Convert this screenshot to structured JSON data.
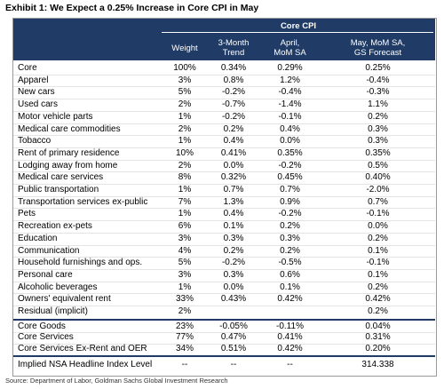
{
  "title": "Exhibit 1: We Expect a 0.25% Increase in Core CPI in May",
  "table": {
    "group_header": "Core CPI",
    "columns": [
      [
        "Weight"
      ],
      [
        "3-Month",
        "Trend"
      ],
      [
        "April,",
        "MoM SA"
      ],
      [
        "May, MoM SA,",
        "GS Forecast"
      ]
    ],
    "sections": [
      {
        "rows": [
          [
            "Core",
            "100%",
            "0.34%",
            "0.29%",
            "0.25%"
          ],
          [
            "Apparel",
            "3%",
            "0.8%",
            "1.2%",
            "-0.4%"
          ],
          [
            "New cars",
            "5%",
            "-0.2%",
            "-0.4%",
            "-0.3%"
          ],
          [
            "Used cars",
            "2%",
            "-0.7%",
            "-1.4%",
            "1.1%"
          ],
          [
            "Motor vehicle parts",
            "1%",
            "-0.2%",
            "-0.1%",
            "0.2%"
          ],
          [
            "Medical care commodities",
            "2%",
            "0.2%",
            "0.4%",
            "0.3%"
          ],
          [
            "Tobacco",
            "1%",
            "0.4%",
            "0.0%",
            "0.3%"
          ],
          [
            "Rent of primary residence",
            "10%",
            "0.41%",
            "0.35%",
            "0.35%"
          ],
          [
            "Lodging away from home",
            "2%",
            "0.0%",
            "-0.2%",
            "0.5%"
          ],
          [
            "Medical care services",
            "8%",
            "0.32%",
            "0.45%",
            "0.40%"
          ],
          [
            "Public transportation",
            "1%",
            "0.7%",
            "0.7%",
            "-2.0%"
          ],
          [
            "Transportation services ex-public",
            "7%",
            "1.3%",
            "0.9%",
            "0.7%"
          ],
          [
            "Pets",
            "1%",
            "0.4%",
            "-0.2%",
            "-0.1%"
          ],
          [
            "Recreation ex-pets",
            "6%",
            "0.1%",
            "0.2%",
            "0.0%"
          ],
          [
            "Education",
            "3%",
            "0.3%",
            "0.3%",
            "0.2%"
          ],
          [
            "Communication",
            "4%",
            "0.2%",
            "0.2%",
            "0.1%"
          ],
          [
            "Household furnishings and ops.",
            "5%",
            "-0.2%",
            "-0.5%",
            "-0.1%"
          ],
          [
            "Personal care",
            "3%",
            "0.3%",
            "0.6%",
            "0.1%"
          ],
          [
            "Alcoholic beverages",
            "1%",
            "0.0%",
            "0.1%",
            "0.2%"
          ],
          [
            "Owners' equivalent rent",
            "33%",
            "0.43%",
            "0.42%",
            "0.42%"
          ],
          [
            "Residual (implicit)",
            "2%",
            null,
            null,
            "0.2%"
          ]
        ]
      },
      {
        "rows": [
          [
            "Core Goods",
            "23%",
            "-0.05%",
            "-0.11%",
            "0.04%"
          ],
          [
            "Core Services",
            "77%",
            "0.47%",
            "0.41%",
            "0.31%"
          ],
          [
            "Core Services Ex-Rent and OER",
            "34%",
            "0.51%",
            "0.42%",
            "0.20%"
          ]
        ]
      },
      {
        "rows": [
          [
            "Implied NSA Headline Index Level",
            "--",
            "--",
            "--",
            "314.338"
          ]
        ]
      }
    ]
  },
  "source": "Source: Department of Labor, Goldman Sachs Global Investment Research"
}
